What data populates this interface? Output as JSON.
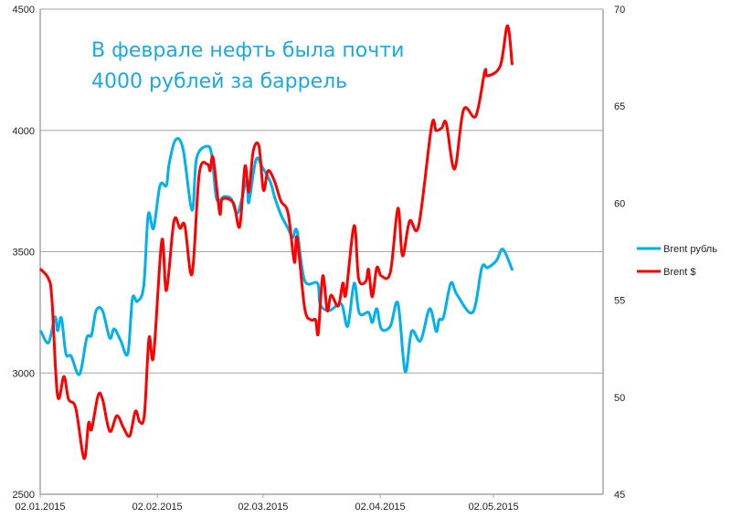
{
  "chart_data": {
    "type": "line",
    "title": "",
    "annotation": [
      "В феврале нефть была почти",
      "4000 рублей за баррель"
    ],
    "xlabel": "",
    "x_unit": "days since 02.01.2015",
    "xlim": [
      0,
      149
    ],
    "x_ticks": [
      {
        "day": 0,
        "label": "02.01.2015"
      },
      {
        "day": 31,
        "label": "02.02.2015"
      },
      {
        "day": 59,
        "label": "02.03.2015"
      },
      {
        "day": 90,
        "label": "02.04.2015"
      },
      {
        "day": 120,
        "label": "02.05.2015"
      }
    ],
    "y_left": {
      "label": "",
      "lim": [
        2500,
        4500
      ],
      "ticks": [
        "2500",
        "3000",
        "3500",
        "4000",
        "4500"
      ]
    },
    "y_right": {
      "label": "",
      "lim": [
        45,
        70
      ],
      "ticks": [
        "45",
        "50",
        "55",
        "60",
        "65",
        "70"
      ]
    },
    "grid": true,
    "legend_position": "right",
    "series": [
      {
        "name": "Brent рубль",
        "axis": "left",
        "color": "#00b0f0",
        "points": [
          [
            0.2,
            3171
          ],
          [
            2.2,
            3125
          ],
          [
            3.9,
            3231
          ],
          [
            4.6,
            3174
          ],
          [
            5.6,
            3227
          ],
          [
            6.8,
            3080
          ],
          [
            8.2,
            3069
          ],
          [
            10.4,
            2994
          ],
          [
            12.3,
            3144
          ],
          [
            13.6,
            3156
          ],
          [
            14.8,
            3257
          ],
          [
            16.5,
            3257
          ],
          [
            18.4,
            3144
          ],
          [
            19.6,
            3182
          ],
          [
            21.3,
            3133
          ],
          [
            23.2,
            3080
          ],
          [
            24.4,
            3306
          ],
          [
            25.7,
            3295
          ],
          [
            27.4,
            3359
          ],
          [
            28.6,
            3653
          ],
          [
            30.0,
            3596
          ],
          [
            31.7,
            3773
          ],
          [
            33.4,
            3773
          ],
          [
            34.1,
            3860
          ],
          [
            35.8,
            3961
          ],
          [
            37.8,
            3924
          ],
          [
            40.2,
            3671
          ],
          [
            41.4,
            3886
          ],
          [
            44.3,
            3935
          ],
          [
            45.5,
            3890
          ],
          [
            46.7,
            3717
          ],
          [
            48.7,
            3728
          ],
          [
            50.6,
            3717
          ],
          [
            52.3,
            3660
          ],
          [
            54.7,
            3796
          ],
          [
            55.2,
            3702
          ],
          [
            57.1,
            3879
          ],
          [
            58.8,
            3848
          ],
          [
            61.0,
            3784
          ],
          [
            62.0,
            3728
          ],
          [
            63.7,
            3653
          ],
          [
            65.6,
            3596
          ],
          [
            66.8,
            3558
          ],
          [
            68.0,
            3585
          ],
          [
            70.0,
            3381
          ],
          [
            73.4,
            3370
          ],
          [
            74.1,
            3284
          ],
          [
            76.5,
            3257
          ],
          [
            79.7,
            3284
          ],
          [
            81.4,
            3193
          ],
          [
            83.1,
            3370
          ],
          [
            84.5,
            3246
          ],
          [
            86.9,
            3250
          ],
          [
            87.9,
            3208
          ],
          [
            89.1,
            3265
          ],
          [
            90.3,
            3182
          ],
          [
            92.7,
            3193
          ],
          [
            94.7,
            3287
          ],
          [
            96.6,
            3005
          ],
          [
            98.3,
            3171
          ],
          [
            100.7,
            3133
          ],
          [
            103.1,
            3265
          ],
          [
            104.8,
            3171
          ],
          [
            105.6,
            3220
          ],
          [
            106.8,
            3231
          ],
          [
            108.7,
            3370
          ],
          [
            110.4,
            3321
          ],
          [
            114.5,
            3250
          ],
          [
            116.9,
            3434
          ],
          [
            118.4,
            3434
          ],
          [
            120.8,
            3464
          ],
          [
            122.5,
            3510
          ],
          [
            124.9,
            3427
          ]
        ]
      },
      {
        "name": "Brent $",
        "axis": "right",
        "color": "#ff0000",
        "points": [
          [
            0.2,
            56.58
          ],
          [
            2.2,
            56.1
          ],
          [
            3.1,
            55.07
          ],
          [
            4.6,
            50.08
          ],
          [
            6.3,
            51.07
          ],
          [
            7.5,
            49.9
          ],
          [
            9.4,
            49.43
          ],
          [
            11.6,
            46.84
          ],
          [
            12.8,
            48.67
          ],
          [
            13.6,
            48.34
          ],
          [
            15.3,
            50.08
          ],
          [
            16.5,
            49.9
          ],
          [
            18.4,
            48.25
          ],
          [
            20.3,
            49.05
          ],
          [
            22.0,
            48.44
          ],
          [
            23.7,
            48.01
          ],
          [
            25.2,
            49.28
          ],
          [
            26.4,
            48.72
          ],
          [
            27.6,
            49.14
          ],
          [
            28.8,
            53.05
          ],
          [
            30.0,
            52.11
          ],
          [
            32.2,
            58.09
          ],
          [
            33.4,
            55.5
          ],
          [
            35.4,
            59.08
          ],
          [
            37.0,
            58.7
          ],
          [
            38.3,
            58.84
          ],
          [
            40.2,
            56.35
          ],
          [
            42.1,
            61.53
          ],
          [
            44.3,
            62.0
          ],
          [
            45.0,
            61.67
          ],
          [
            45.8,
            62.33
          ],
          [
            47.5,
            59.5
          ],
          [
            48.2,
            60.21
          ],
          [
            51.1,
            60.02
          ],
          [
            52.8,
            58.8
          ],
          [
            54.2,
            61.9
          ],
          [
            55.2,
            60.58
          ],
          [
            56.4,
            62.7
          ],
          [
            57.9,
            62.94
          ],
          [
            59.1,
            60.68
          ],
          [
            60.3,
            61.67
          ],
          [
            62.0,
            61.15
          ],
          [
            63.7,
            60.11
          ],
          [
            65.6,
            59.5
          ],
          [
            67.3,
            56.96
          ],
          [
            68.0,
            58.23
          ],
          [
            70.0,
            54.6
          ],
          [
            71.7,
            53.99
          ],
          [
            72.9,
            53.99
          ],
          [
            73.6,
            53.29
          ],
          [
            74.8,
            56.25
          ],
          [
            76.0,
            54.46
          ],
          [
            77.0,
            55.26
          ],
          [
            78.9,
            54.7
          ],
          [
            80.1,
            55.88
          ],
          [
            80.9,
            55.31
          ],
          [
            83.1,
            58.84
          ],
          [
            84.3,
            56.11
          ],
          [
            86.2,
            55.97
          ],
          [
            86.9,
            56.58
          ],
          [
            87.9,
            55.17
          ],
          [
            89.1,
            56.68
          ],
          [
            90.3,
            56.25
          ],
          [
            92.7,
            56.44
          ],
          [
            94.7,
            59.74
          ],
          [
            95.9,
            57.29
          ],
          [
            97.8,
            59.08
          ],
          [
            100.2,
            58.84
          ],
          [
            103.6,
            63.97
          ],
          [
            104.8,
            63.74
          ],
          [
            106.3,
            63.88
          ],
          [
            107.5,
            64.11
          ],
          [
            109.7,
            61.76
          ],
          [
            112.1,
            64.82
          ],
          [
            115.3,
            64.49
          ],
          [
            117.7,
            66.8
          ],
          [
            118.4,
            66.56
          ],
          [
            121.8,
            67.08
          ],
          [
            123.7,
            69.15
          ],
          [
            124.9,
            67.18
          ]
        ]
      }
    ]
  }
}
